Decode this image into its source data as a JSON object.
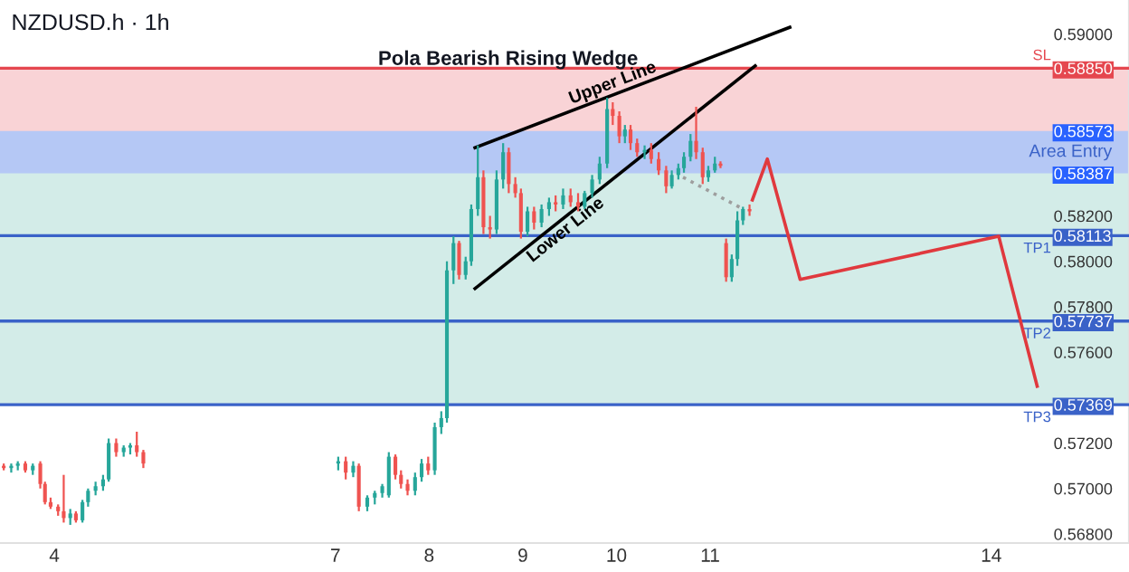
{
  "chart_data": {
    "type": "candlestick",
    "title": "NZDUSD.h · 1h",
    "annotations": [
      "Pola Bearish Rising Wedge"
    ],
    "x": [
      3.46,
      3.54,
      3.61,
      3.69,
      3.77,
      3.85,
      3.9,
      3.96,
      4.04,
      4.1,
      4.17,
      4.23,
      4.3,
      4.36,
      4.44,
      4.52,
      4.58,
      4.66,
      4.74,
      4.81,
      4.88,
      4.95,
      7.03,
      7.11,
      7.19,
      7.25,
      7.34,
      7.42,
      7.5,
      7.57,
      7.64,
      7.7,
      7.77,
      7.85,
      7.92,
      7.99,
      8.06,
      8.13,
      8.19,
      8.26,
      8.32,
      8.39,
      8.45,
      8.52,
      8.58,
      8.65,
      8.72,
      8.79,
      8.85,
      8.92,
      8.98,
      9.05,
      9.12,
      9.2,
      9.28,
      9.35,
      9.43,
      9.51,
      9.59,
      9.66,
      9.74,
      9.82,
      9.9,
      9.96,
      10.03,
      10.09,
      10.15,
      10.22,
      10.3,
      10.37,
      10.45,
      10.53,
      10.59,
      10.66,
      10.72,
      10.79,
      10.85,
      10.92,
      10.98,
      11.05,
      11.11,
      11.17,
      11.23,
      11.29,
      11.35,
      11.42
    ],
    "ohlc": [
      [
        0.571,
        0.5711,
        0.5708,
        0.5709
      ],
      [
        0.5709,
        0.5711,
        0.5707,
        0.571
      ],
      [
        0.571,
        0.5712,
        0.5708,
        0.5711
      ],
      [
        0.5711,
        0.5712,
        0.5707,
        0.5708
      ],
      [
        0.5708,
        0.5711,
        0.5706,
        0.571
      ],
      [
        0.5711,
        0.5712,
        0.57,
        0.5702
      ],
      [
        0.5702,
        0.5703,
        0.5693,
        0.5694
      ],
      [
        0.5694,
        0.5696,
        0.5691,
        0.5692
      ],
      [
        0.5692,
        0.5693,
        0.5688,
        0.569
      ],
      [
        0.569,
        0.5706,
        0.5685,
        0.5687
      ],
      [
        0.5687,
        0.5691,
        0.5684,
        0.5689
      ],
      [
        0.5689,
        0.569,
        0.5685,
        0.5686
      ],
      [
        0.5686,
        0.5695,
        0.5685,
        0.5694
      ],
      [
        0.5694,
        0.57,
        0.5692,
        0.5699
      ],
      [
        0.5699,
        0.5703,
        0.5697,
        0.5701
      ],
      [
        0.5701,
        0.5706,
        0.5699,
        0.5704
      ],
      [
        0.5704,
        0.5722,
        0.5703,
        0.572
      ],
      [
        0.572,
        0.5722,
        0.5714,
        0.5716
      ],
      [
        0.5716,
        0.5719,
        0.5714,
        0.5718
      ],
      [
        0.5718,
        0.572,
        0.5715,
        0.5719
      ],
      [
        0.5719,
        0.5725,
        0.5714,
        0.5716
      ],
      [
        0.5716,
        0.5717,
        0.5709,
        0.5711
      ],
      [
        0.5711,
        0.5714,
        0.5708,
        0.5712
      ],
      [
        0.5712,
        0.5714,
        0.5704,
        0.5707
      ],
      [
        0.5707,
        0.5712,
        0.5705,
        0.571
      ],
      [
        0.571,
        0.5711,
        0.569,
        0.5692
      ],
      [
        0.5692,
        0.5697,
        0.569,
        0.5696
      ],
      [
        0.5696,
        0.5699,
        0.5693,
        0.5698
      ],
      [
        0.5698,
        0.5702,
        0.5696,
        0.5701
      ],
      [
        0.5697,
        0.5716,
        0.5696,
        0.5714
      ],
      [
        0.5714,
        0.5715,
        0.5704,
        0.5706
      ],
      [
        0.5706,
        0.5708,
        0.57,
        0.5702
      ],
      [
        0.5702,
        0.5704,
        0.5697,
        0.5699
      ],
      [
        0.5699,
        0.5707,
        0.5697,
        0.5705
      ],
      [
        0.5705,
        0.5713,
        0.5703,
        0.5711
      ],
      [
        0.5711,
        0.5714,
        0.5706,
        0.5708
      ],
      [
        0.5708,
        0.5729,
        0.5706,
        0.5727
      ],
      [
        0.5727,
        0.5734,
        0.5724,
        0.5731
      ],
      [
        0.5731,
        0.58,
        0.5729,
        0.5796
      ],
      [
        0.5796,
        0.5811,
        0.579,
        0.5808
      ],
      [
        0.5808,
        0.5809,
        0.5792,
        0.5794
      ],
      [
        0.5794,
        0.5802,
        0.5792,
        0.58
      ],
      [
        0.58,
        0.5825,
        0.5798,
        0.5823
      ],
      [
        0.5823,
        0.5851,
        0.582,
        0.5837
      ],
      [
        0.5837,
        0.584,
        0.5812,
        0.5815
      ],
      [
        0.5815,
        0.582,
        0.581,
        0.5814
      ],
      [
        0.5814,
        0.584,
        0.5812,
        0.5836
      ],
      [
        0.5836,
        0.5852,
        0.5832,
        0.5848
      ],
      [
        0.5848,
        0.585,
        0.583,
        0.5834
      ],
      [
        0.5834,
        0.5837,
        0.5828,
        0.583
      ],
      [
        0.583,
        0.5832,
        0.581,
        0.5813
      ],
      [
        0.5813,
        0.5824,
        0.5811,
        0.5822
      ],
      [
        0.5822,
        0.5824,
        0.5814,
        0.5817
      ],
      [
        0.5817,
        0.5825,
        0.5815,
        0.5823
      ],
      [
        0.5823,
        0.5828,
        0.582,
        0.5826
      ],
      [
        0.5826,
        0.5829,
        0.5822,
        0.5825
      ],
      [
        0.5825,
        0.5832,
        0.5823,
        0.5829
      ],
      [
        0.5829,
        0.5832,
        0.5824,
        0.5826
      ],
      [
        0.5826,
        0.583,
        0.5822,
        0.5824
      ],
      [
        0.5824,
        0.5831,
        0.5823,
        0.583
      ],
      [
        0.583,
        0.5838,
        0.5828,
        0.5836
      ],
      [
        0.5836,
        0.5846,
        0.5834,
        0.5843
      ],
      [
        0.5843,
        0.5872,
        0.5841,
        0.5867
      ],
      [
        0.5867,
        0.587,
        0.586,
        0.5864
      ],
      [
        0.5864,
        0.5866,
        0.5852,
        0.5855
      ],
      [
        0.5855,
        0.586,
        0.5852,
        0.5858
      ],
      [
        0.5858,
        0.586,
        0.5849,
        0.5852
      ],
      [
        0.5852,
        0.5854,
        0.5846,
        0.5848
      ],
      [
        0.5848,
        0.5851,
        0.5845,
        0.5849
      ],
      [
        0.5849,
        0.5852,
        0.5843,
        0.5845
      ],
      [
        0.5845,
        0.5848,
        0.5838,
        0.584
      ],
      [
        0.584,
        0.5842,
        0.583,
        0.5833
      ],
      [
        0.5833,
        0.584,
        0.5832,
        0.5838
      ],
      [
        0.5838,
        0.5843,
        0.5836,
        0.5841
      ],
      [
        0.5841,
        0.5848,
        0.5839,
        0.5846
      ],
      [
        0.5846,
        0.5856,
        0.5844,
        0.5853
      ],
      [
        0.5853,
        0.5868,
        0.5845,
        0.5848
      ],
      [
        0.5848,
        0.585,
        0.5834,
        0.5837
      ],
      [
        0.5837,
        0.5842,
        0.5835,
        0.584
      ],
      [
        0.584,
        0.5846,
        0.5839,
        0.5843
      ],
      [
        0.5843,
        0.5844,
        0.5841,
        0.5842
      ],
      [
        0.5808,
        0.581,
        0.5791,
        0.5793
      ],
      [
        0.5793,
        0.5803,
        0.5791,
        0.5801
      ],
      [
        0.5801,
        0.5822,
        0.5798,
        0.5818
      ],
      [
        0.5818,
        0.5824,
        0.5816,
        0.5823
      ],
      [
        0.5823,
        0.5825,
        0.582,
        0.5822
      ]
    ],
    "colors": [
      "#ef5350",
      "#26a69a",
      "#26a69a",
      "#ef5350",
      "#26a69a",
      "#ef5350",
      "#ef5350",
      "#ef5350",
      "#ef5350",
      "#ef5350",
      "#26a69a",
      "#ef5350",
      "#26a69a",
      "#26a69a",
      "#26a69a",
      "#26a69a",
      "#26a69a",
      "#ef5350",
      "#26a69a",
      "#26a69a",
      "#ef5350",
      "#ef5350",
      "#26a69a",
      "#ef5350",
      "#26a69a",
      "#ef5350",
      "#26a69a",
      "#26a69a",
      "#26a69a",
      "#26a69a",
      "#ef5350",
      "#ef5350",
      "#ef5350",
      "#26a69a",
      "#26a69a",
      "#ef5350",
      "#26a69a",
      "#26a69a",
      "#26a69a",
      "#26a69a",
      "#ef5350",
      "#26a69a",
      "#26a69a",
      "#26a69a",
      "#ef5350",
      "#ef5350",
      "#26a69a",
      "#26a69a",
      "#ef5350",
      "#ef5350",
      "#ef5350",
      "#26a69a",
      "#ef5350",
      "#26a69a",
      "#26a69a",
      "#ef5350",
      "#26a69a",
      "#ef5350",
      "#ef5350",
      "#26a69a",
      "#26a69a",
      "#26a69a",
      "#26a69a",
      "#ef5350",
      "#ef5350",
      "#26a69a",
      "#ef5350",
      "#ef5350",
      "#26a69a",
      "#ef5350",
      "#ef5350",
      "#ef5350",
      "#26a69a",
      "#26a69a",
      "#26a69a",
      "#26a69a",
      "#ef5350",
      "#ef5350",
      "#26a69a",
      "#26a69a",
      "#ef5350",
      "#ef5350",
      "#26a69a",
      "#26a69a",
      "#26a69a",
      "#ef5350"
    ],
    "series": [
      {
        "type": "line",
        "name": "Upper Line",
        "color": "#000000",
        "x": [
          8.49,
          11.85
        ],
        "values": [
          0.585,
          0.5903
        ]
      },
      {
        "type": "line",
        "name": "Lower Line",
        "color": "#000000",
        "x": [
          8.49,
          11.48
        ],
        "values": [
          0.5788,
          0.5886
        ]
      },
      {
        "type": "line",
        "color": "#9e9e9e",
        "line_style": "dotted",
        "x": [
          10.71,
          11.35
        ],
        "values": [
          0.5837,
          0.5823
        ]
      },
      {
        "type": "line",
        "color": "#e0393e",
        "x": [
          11.45,
          11.61,
          11.96,
          14.08,
          14.49
        ],
        "values": [
          0.5827,
          0.5845,
          0.5792,
          0.5811,
          0.5745
        ]
      }
    ],
    "bands": [
      {
        "axis": "y",
        "from": 0.5848,
        "to": 0.5885,
        "color": "#f9d3d6"
      },
      {
        "axis": "y",
        "from": 0.57369,
        "to": 0.5848,
        "color": "#d3ece8"
      },
      {
        "axis": "y",
        "from": 0.58387,
        "to": 0.58573,
        "color": "#b5c8f5",
        "label": "Area Entry"
      }
    ],
    "ref_lines": [
      {
        "axis": "y",
        "value": 0.5885,
        "label": "SL",
        "color": "#e5474f"
      },
      {
        "axis": "y",
        "value": 0.58113,
        "label": "TP1",
        "color": "#3a62c8"
      },
      {
        "axis": "y",
        "value": 0.57737,
        "label": "TP2",
        "color": "#3a62c8"
      },
      {
        "axis": "y",
        "value": 0.57369,
        "label": "TP3",
        "color": "#3a62c8"
      }
    ],
    "xlim": [
      3.42,
      15.47
    ],
    "xticks": [
      4,
      7,
      8,
      9,
      10,
      11,
      14
    ],
    "ylim": [
      0.5676,
      0.5915
    ],
    "yticks": [
      {
        "value": 0.59,
        "label": "0.59000"
      },
      {
        "value": 0.5885,
        "label": "0.58850"
      },
      {
        "value": 0.58573,
        "label": "0.58573"
      },
      {
        "value": 0.58387,
        "label": "0.58387"
      },
      {
        "value": 0.582,
        "label": "0.58200"
      },
      {
        "value": 0.58113,
        "label": "0.58113"
      },
      {
        "value": 0.58,
        "label": "0.58000"
      },
      {
        "value": 0.578,
        "label": "0.57800"
      },
      {
        "value": 0.57737,
        "label": "0.57737"
      },
      {
        "value": 0.576,
        "label": "0.57600"
      },
      {
        "value": 0.57369,
        "label": "0.57369"
      },
      {
        "value": 0.572,
        "label": "0.57200"
      },
      {
        "value": 0.57,
        "label": "0.57000"
      },
      {
        "value": 0.568,
        "label": "0.56800"
      }
    ],
    "grid": false,
    "legend": false
  }
}
